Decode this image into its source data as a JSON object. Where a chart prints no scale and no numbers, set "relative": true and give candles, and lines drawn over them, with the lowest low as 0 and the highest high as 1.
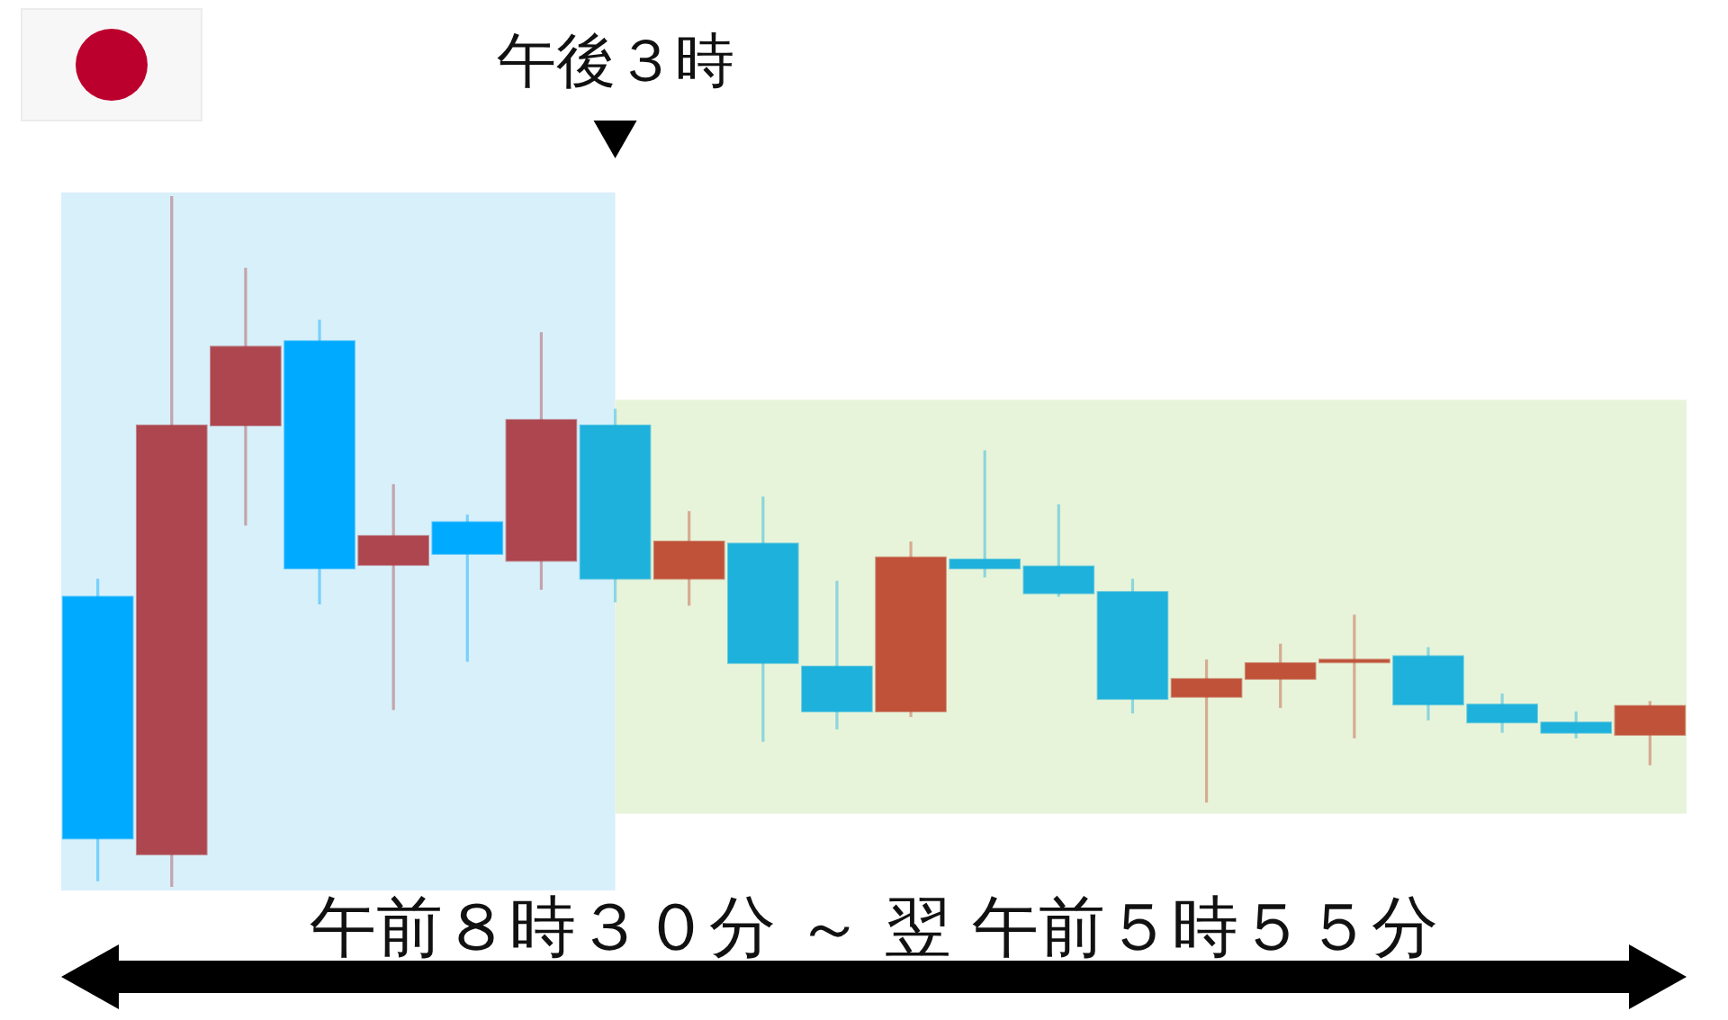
{
  "chart_data": {
    "type": "candlestick",
    "relative": true,
    "categories": [
      null,
      null,
      null,
      null,
      null,
      null,
      null,
      null,
      null,
      null,
      null,
      null,
      null,
      null,
      null,
      null,
      null,
      null,
      null,
      null,
      null,
      null
    ],
    "ohlc": [
      [
        0.42,
        0.446,
        0.008,
        0.07
      ],
      [
        0.047,
        1.0,
        0.0,
        0.668
      ],
      [
        0.668,
        0.896,
        0.523,
        0.782
      ],
      [
        0.79,
        0.821,
        0.409,
        0.461
      ],
      [
        0.466,
        0.583,
        0.256,
        0.508
      ],
      [
        0.528,
        0.539,
        0.326,
        0.482
      ],
      [
        0.472,
        0.803,
        0.43,
        0.676
      ],
      [
        0.668,
        0.692,
        0.412,
        0.446
      ],
      [
        0.446,
        0.544,
        0.407,
        0.5
      ],
      [
        0.497,
        0.565,
        0.21,
        0.324
      ],
      [
        0.319,
        0.443,
        0.228,
        0.254
      ],
      [
        0.254,
        0.5,
        0.246,
        0.477
      ],
      [
        0.474,
        0.632,
        0.448,
        0.461
      ],
      [
        0.464,
        0.554,
        0.42,
        0.425
      ],
      [
        0.427,
        0.446,
        0.251,
        0.272
      ],
      [
        0.275,
        0.329,
        0.122,
        0.301
      ],
      [
        0.301,
        0.352,
        0.259,
        0.324
      ],
      [
        0.326,
        0.394,
        0.215,
        0.329
      ],
      [
        0.334,
        0.347,
        0.241,
        0.264
      ],
      [
        0.264,
        0.28,
        0.223,
        0.238
      ],
      [
        0.238,
        0.254,
        0.215,
        0.223
      ],
      [
        0.22,
        0.269,
        0.176,
        0.262
      ]
    ],
    "colors": [
      "#00aaff",
      "#ad464e",
      "#ad464e",
      "#00aaff",
      "#ad464e",
      "#00aaff",
      "#ad464e",
      "#1eb1dc",
      "#c0523a",
      "#1eb1dc",
      "#1eb1dc",
      "#c0523a",
      "#1eb1dc",
      "#1eb1dc",
      "#1eb1dc",
      "#c0523a",
      "#c0523a",
      "#c0523a",
      "#1eb1dc",
      "#1eb1dc",
      "#1eb1dc",
      "#c0523a"
    ],
    "annotations": [
      "午後３時",
      "午前８時３０分 ～ 翌 午前５時５５分"
    ]
  }
}
